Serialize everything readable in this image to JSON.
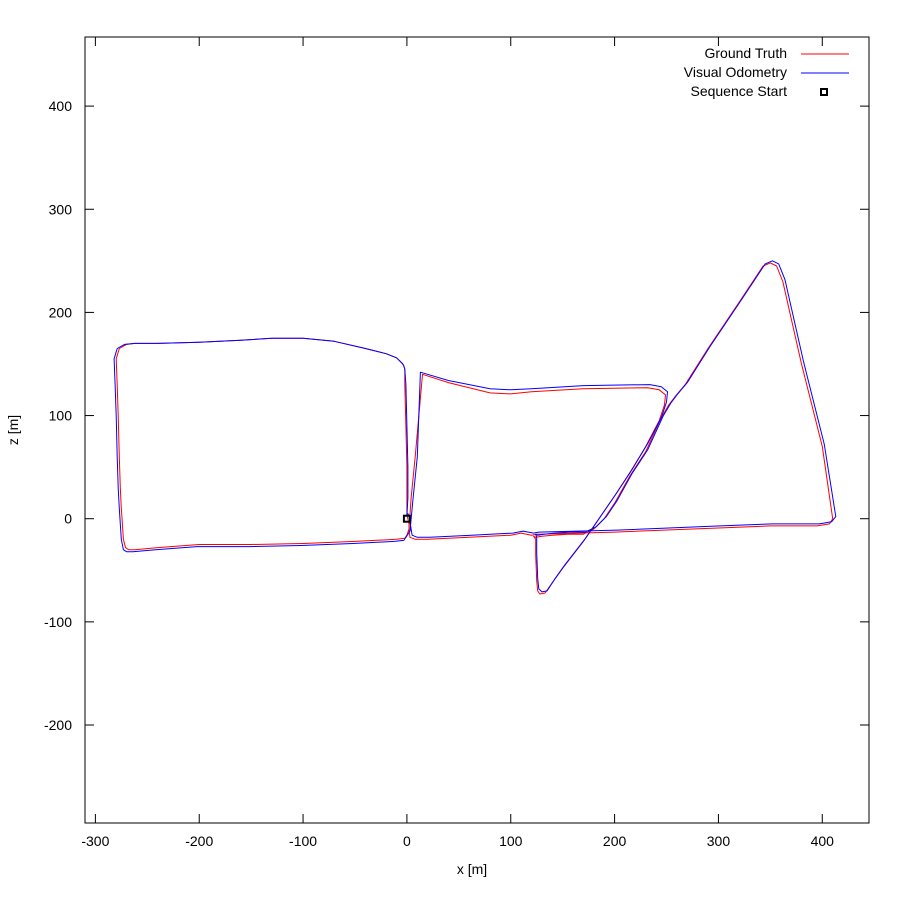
{
  "chart_data": {
    "type": "line",
    "title": "",
    "xlabel": "x [m]",
    "ylabel": "z [m]",
    "xlim": [
      -310,
      445
    ],
    "ylim": [
      -295,
      467
    ],
    "xticks": [
      -300,
      -200,
      -100,
      0,
      100,
      200,
      300,
      400
    ],
    "yticks": [
      -200,
      -100,
      0,
      100,
      200,
      300,
      400
    ],
    "grid": false,
    "legend_position": "top-right",
    "series": [
      {
        "name": "Ground Truth",
        "color": "#ff0000",
        "x": [
          0,
          0,
          0,
          -1,
          -2,
          -2,
          -3,
          -4,
          -6,
          -10,
          -20,
          -40,
          -70,
          -100,
          -130,
          -160,
          -200,
          -240,
          -262,
          -270,
          -277,
          -280,
          -279,
          -278,
          -277,
          -276,
          -275,
          -274,
          -273,
          -271,
          -268,
          -262,
          -240,
          -200,
          -150,
          -100,
          -50,
          -10,
          -2,
          0,
          2,
          4,
          8,
          15,
          40,
          80,
          100,
          120,
          170,
          232,
          243,
          249,
          248,
          243,
          230,
          215,
          200,
          185,
          170,
          150,
          140,
          133,
          128,
          126,
          125,
          124,
          124,
          122,
          124,
          130,
          140,
          155,
          170,
          180,
          190,
          200,
          215,
          230,
          245,
          252,
          258,
          268,
          290,
          320,
          343,
          350,
          356,
          362,
          380,
          400,
          410,
          407,
          395,
          350,
          300,
          200,
          125,
          120,
          110,
          100,
          60,
          20,
          8,
          3,
          2,
          2,
          1,
          0,
          0
        ],
        "y": [
          3,
          20,
          50,
          90,
          130,
          145,
          148,
          150,
          152,
          156,
          160,
          165,
          172,
          175,
          175,
          173,
          171,
          170,
          170,
          169,
          165,
          155,
          130,
          100,
          60,
          30,
          10,
          -5,
          -20,
          -28,
          -30,
          -30,
          -28,
          -25,
          -25,
          -24,
          -22,
          -20,
          -19,
          -16,
          -10,
          20,
          60,
          140,
          132,
          122,
          121,
          123,
          126,
          127,
          125,
          120,
          110,
          95,
          70,
          45,
          22,
          0,
          -22,
          -48,
          -62,
          -72,
          -73,
          -70,
          -60,
          -35,
          -20,
          -17,
          -18,
          -17,
          -16,
          -15,
          -15,
          -10,
          0,
          15,
          42,
          65,
          98,
          110,
          118,
          130,
          165,
          210,
          245,
          248,
          245,
          230,
          150,
          70,
          0,
          -5,
          -7,
          -7,
          -9,
          -13,
          -15,
          -16,
          -14,
          -16,
          -18,
          -20,
          -20,
          -18,
          -12,
          -5,
          0,
          3,
          3
        ]
      },
      {
        "name": "Visual Odometry",
        "color": "#0000ff",
        "x": [
          0,
          1,
          1,
          0,
          -1,
          -2,
          -3,
          -4,
          -6,
          -10,
          -20,
          -40,
          -70,
          -100,
          -130,
          -160,
          -200,
          -240,
          -262,
          -272,
          -279,
          -282,
          -281,
          -280,
          -279,
          -278,
          -277,
          -276,
          -275,
          -273,
          -270,
          -264,
          -242,
          -202,
          -152,
          -102,
          -52,
          -12,
          -3,
          -1,
          3,
          6,
          10,
          13,
          40,
          80,
          100,
          120,
          170,
          234,
          245,
          251,
          250,
          245,
          232,
          217,
          202,
          187,
          172,
          152,
          142,
          135,
          130,
          127,
          126,
          125,
          125,
          124,
          126,
          132,
          142,
          157,
          172,
          182,
          192,
          202,
          217,
          232,
          247,
          254,
          260,
          270,
          292,
          322,
          345,
          352,
          358,
          364,
          382,
          402,
          413,
          409,
          397,
          352,
          302,
          202,
          127,
          122,
          112,
          102,
          62,
          22,
          10,
          5,
          4,
          3,
          2,
          1,
          0
        ],
        "y": [
          3,
          20,
          50,
          90,
          130,
          145,
          148,
          150,
          152,
          156,
          160,
          165,
          172,
          175,
          175,
          173,
          171,
          170,
          170,
          169,
          165,
          155,
          130,
          100,
          60,
          30,
          10,
          -5,
          -20,
          -30,
          -32,
          -32,
          -30,
          -27,
          -27,
          -26,
          -24,
          -22,
          -21,
          -18,
          -12,
          20,
          60,
          142,
          134,
          126,
          125,
          126,
          129,
          130,
          128,
          123,
          113,
          98,
          73,
          48,
          25,
          3,
          -19,
          -45,
          -59,
          -70,
          -71,
          -68,
          -58,
          -33,
          -18,
          -15,
          -16,
          -15,
          -14,
          -13,
          -13,
          -8,
          2,
          17,
          44,
          67,
          100,
          112,
          120,
          132,
          167,
          212,
          247,
          250,
          247,
          232,
          152,
          72,
          2,
          -3,
          -5,
          -5,
          -7,
          -11,
          -13,
          -14,
          -12,
          -14,
          -16,
          -18,
          -18,
          -16,
          -10,
          -3,
          2,
          5,
          5
        ]
      }
    ],
    "markers": [
      {
        "name": "Sequence Start",
        "x": 0,
        "y": 0,
        "shape": "square",
        "color": "#000000"
      }
    ]
  }
}
